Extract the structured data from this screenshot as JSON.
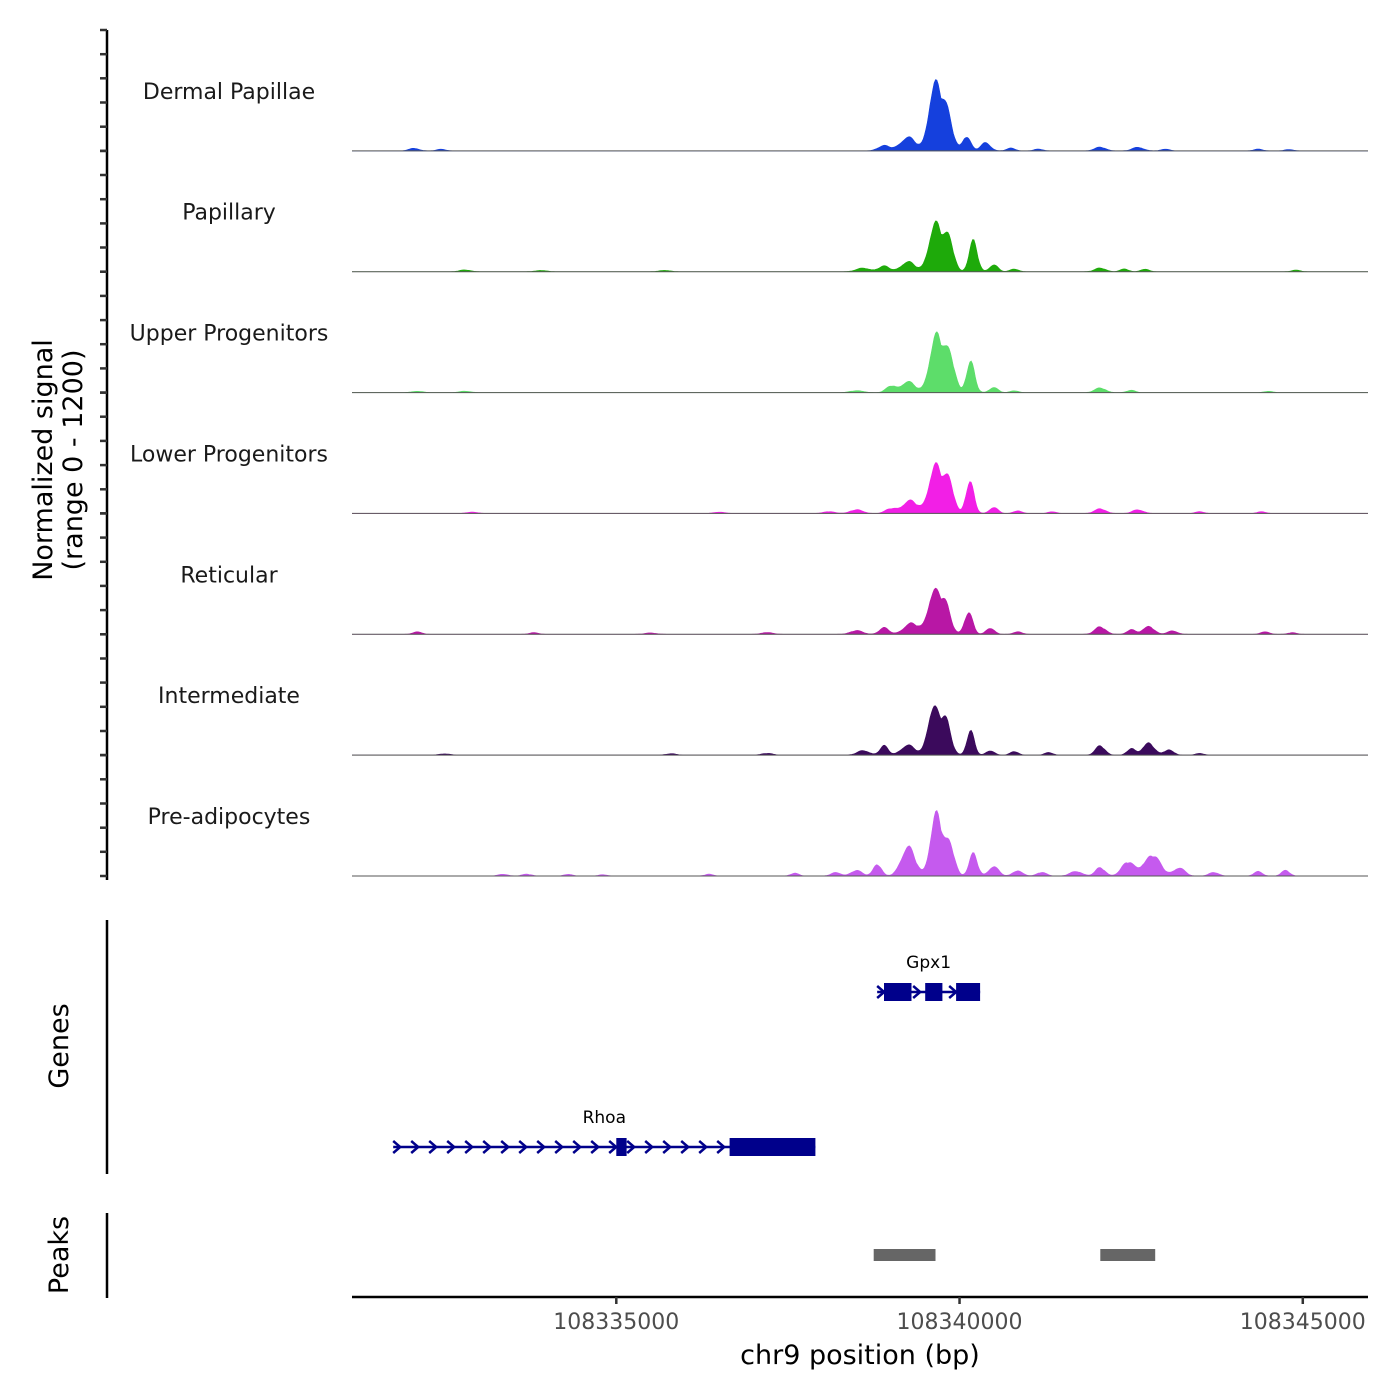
{
  "chart_data": {
    "type": "area",
    "title": "",
    "xlabel": "chr9 position (bp)",
    "ylabel": "Normalized signal\n(range 0 - 1200)",
    "ylabel_lines": [
      "Normalized signal",
      "(range 0 - 1200)"
    ],
    "ylim": [
      0,
      1200
    ],
    "xlim": [
      108331150,
      108345950
    ],
    "x_ticks": [
      108335000,
      108340000,
      108345000
    ],
    "x_tick_labels": [
      "108335000",
      "108340000",
      "108345000"
    ],
    "tracks": [
      {
        "name": "Dermal Papillae",
        "color": "#1540DD",
        "peaks": [
          [
            108332050,
            30,
            70
          ],
          [
            108332450,
            20,
            60
          ],
          [
            108338900,
            55,
            90
          ],
          [
            108339250,
            150,
            110
          ],
          [
            108339640,
            760,
            85
          ],
          [
            108339820,
            380,
            80
          ],
          [
            108340100,
            160,
            60
          ],
          [
            108340380,
            90,
            70
          ],
          [
            108340750,
            30,
            60
          ],
          [
            108341150,
            20,
            60
          ],
          [
            108342050,
            40,
            80
          ],
          [
            108342600,
            40,
            80
          ],
          [
            108343000,
            20,
            60
          ],
          [
            108344350,
            20,
            60
          ],
          [
            108344800,
            15,
            60
          ]
        ]
      },
      {
        "name": "Papillary",
        "color": "#1EAA0A",
        "peaks": [
          [
            108332800,
            20,
            80
          ],
          [
            108333900,
            15,
            80
          ],
          [
            108335700,
            15,
            80
          ],
          [
            108338600,
            40,
            100
          ],
          [
            108338900,
            60,
            80
          ],
          [
            108339250,
            110,
            100
          ],
          [
            108339650,
            560,
            90
          ],
          [
            108339850,
            330,
            70
          ],
          [
            108340200,
            330,
            60
          ],
          [
            108340500,
            80,
            60
          ],
          [
            108340800,
            30,
            60
          ],
          [
            108342050,
            40,
            80
          ],
          [
            108342400,
            30,
            60
          ],
          [
            108342700,
            30,
            60
          ],
          [
            108344900,
            20,
            60
          ]
        ]
      },
      {
        "name": "Upper Progenitors",
        "color": "#5DDD6A",
        "peaks": [
          [
            108332100,
            15,
            80
          ],
          [
            108332800,
            15,
            80
          ],
          [
            108338500,
            20,
            100
          ],
          [
            108339000,
            70,
            70
          ],
          [
            108339250,
            120,
            100
          ],
          [
            108339660,
            660,
            90
          ],
          [
            108339860,
            380,
            75
          ],
          [
            108340160,
            330,
            60
          ],
          [
            108340500,
            60,
            60
          ],
          [
            108340800,
            20,
            60
          ],
          [
            108342050,
            50,
            80
          ],
          [
            108342500,
            25,
            60
          ],
          [
            108344500,
            15,
            60
          ]
        ]
      },
      {
        "name": "Lower Progenitors",
        "color": "#F21FE6",
        "peaks": [
          [
            108332900,
            15,
            80
          ],
          [
            108336500,
            15,
            80
          ],
          [
            108338100,
            20,
            80
          ],
          [
            108338500,
            40,
            90
          ],
          [
            108339000,
            50,
            80
          ],
          [
            108339280,
            140,
            110
          ],
          [
            108339650,
            560,
            90
          ],
          [
            108339850,
            330,
            70
          ],
          [
            108340150,
            340,
            60
          ],
          [
            108340500,
            70,
            60
          ],
          [
            108340850,
            30,
            60
          ],
          [
            108341350,
            20,
            60
          ],
          [
            108342050,
            50,
            80
          ],
          [
            108342600,
            40,
            80
          ],
          [
            108343500,
            20,
            60
          ],
          [
            108344400,
            20,
            60
          ]
        ]
      },
      {
        "name": "Reticular",
        "color": "#B817A5",
        "peaks": [
          [
            108332100,
            30,
            60
          ],
          [
            108333800,
            20,
            60
          ],
          [
            108335500,
            15,
            80
          ],
          [
            108337200,
            20,
            80
          ],
          [
            108338500,
            40,
            90
          ],
          [
            108338900,
            70,
            70
          ],
          [
            108339300,
            120,
            110
          ],
          [
            108339630,
            490,
            85
          ],
          [
            108339800,
            280,
            75
          ],
          [
            108340130,
            240,
            60
          ],
          [
            108340450,
            70,
            60
          ],
          [
            108340850,
            30,
            60
          ],
          [
            108342050,
            80,
            80
          ],
          [
            108342500,
            50,
            60
          ],
          [
            108342750,
            90,
            80
          ],
          [
            108343100,
            40,
            70
          ],
          [
            108344450,
            30,
            60
          ],
          [
            108344850,
            20,
            60
          ]
        ]
      },
      {
        "name": "Intermediate",
        "color": "#3B0A5C",
        "peaks": [
          [
            108332500,
            15,
            80
          ],
          [
            108335800,
            15,
            80
          ],
          [
            108337200,
            20,
            80
          ],
          [
            108338600,
            50,
            90
          ],
          [
            108338900,
            100,
            60
          ],
          [
            108339250,
            110,
            100
          ],
          [
            108339620,
            540,
            80
          ],
          [
            108339800,
            350,
            75
          ],
          [
            108340160,
            260,
            55
          ],
          [
            108340450,
            50,
            60
          ],
          [
            108340800,
            40,
            60
          ],
          [
            108341300,
            30,
            60
          ],
          [
            108342050,
            100,
            70
          ],
          [
            108342500,
            70,
            60
          ],
          [
            108342750,
            140,
            80
          ],
          [
            108343050,
            60,
            70
          ],
          [
            108343500,
            20,
            60
          ]
        ]
      },
      {
        "name": "Pre-adipocytes",
        "color": "#C55AEE",
        "peaks": [
          [
            108333350,
            20,
            70
          ],
          [
            108333700,
            20,
            70
          ],
          [
            108334300,
            20,
            60
          ],
          [
            108334800,
            15,
            60
          ],
          [
            108336350,
            20,
            60
          ],
          [
            108337600,
            30,
            60
          ],
          [
            108338200,
            40,
            70
          ],
          [
            108338500,
            60,
            80
          ],
          [
            108338800,
            130,
            60
          ],
          [
            108339250,
            320,
            100
          ],
          [
            108339660,
            720,
            80
          ],
          [
            108339860,
            330,
            70
          ],
          [
            108340200,
            240,
            60
          ],
          [
            108340500,
            110,
            70
          ],
          [
            108340850,
            60,
            70
          ],
          [
            108341200,
            40,
            70
          ],
          [
            108341700,
            50,
            90
          ],
          [
            108342050,
            90,
            70
          ],
          [
            108342450,
            150,
            90
          ],
          [
            108342800,
            230,
            120
          ],
          [
            108343200,
            90,
            80
          ],
          [
            108343700,
            40,
            70
          ],
          [
            108344350,
            50,
            60
          ],
          [
            108344750,
            60,
            60
          ]
        ]
      }
    ],
    "genes": [
      {
        "name": "Gpx1",
        "start": 108338800,
        "end": 108340300,
        "strand": "+",
        "exons": [
          [
            108338900,
            108339300
          ],
          [
            108339500,
            108339750
          ],
          [
            108339950,
            108340300
          ]
        ]
      },
      {
        "name": "Rhoa",
        "start": 108331750,
        "end": 108337900,
        "strand": "+",
        "exons": [
          [
            108335000,
            108335150
          ],
          [
            108336650,
            108337900
          ]
        ]
      }
    ],
    "peaks_track": [
      [
        108338750,
        108339650
      ],
      [
        108342050,
        108342850
      ]
    ],
    "panel_titles": {
      "genes": "Genes",
      "peaks": "Peaks"
    }
  }
}
